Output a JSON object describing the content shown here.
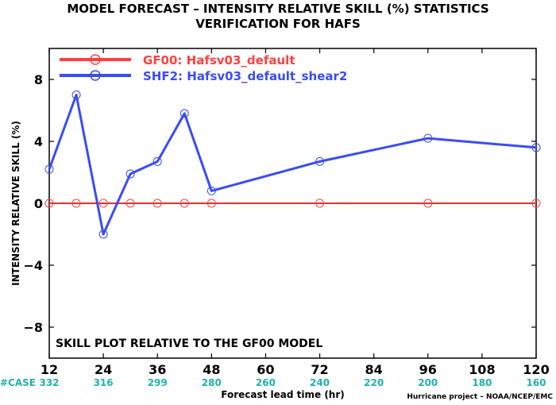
{
  "chart_data": {
    "type": "line",
    "title_line1": "MODEL FORECAST – INTENSITY RELATIVE SKILL (%) STATISTICS",
    "title_line2": "VERIFICATION FOR HAFS",
    "xlabel": "Forecast lead time (hr)",
    "ylabel": "INTENSITY RELATIVE SKILL (%)",
    "xlim": [
      12,
      120
    ],
    "ylim": [
      -10,
      10
    ],
    "x_ticks": [
      12,
      24,
      36,
      48,
      60,
      72,
      84,
      96,
      108,
      120
    ],
    "y_ticks": [
      8,
      4,
      0,
      -4,
      -8
    ],
    "y_tick_labels": [
      "8",
      "4",
      "0",
      "−4",
      "−8"
    ],
    "grid": false,
    "legend_position": "top-left",
    "cases_label": "#CASE",
    "cases": [
      {
        "x": 12,
        "count": "332"
      },
      {
        "x": 24,
        "count": "316"
      },
      {
        "x": 36,
        "count": "299"
      },
      {
        "x": 48,
        "count": "280"
      },
      {
        "x": 60,
        "count": "260"
      },
      {
        "x": 72,
        "count": "240"
      },
      {
        "x": 84,
        "count": "220"
      },
      {
        "x": 96,
        "count": "200"
      },
      {
        "x": 108,
        "count": "180"
      },
      {
        "x": 120,
        "count": "160"
      }
    ],
    "annotation": "SKILL PLOT RELATIVE TO THE GF00 MODEL",
    "credit": "Hurricane project – NOAA/NCEP/EMC",
    "zero_line_color": "#8b0000",
    "cases_color": "#20b2aa",
    "series": [
      {
        "name": "GF00: Hafsv03_default",
        "color": "#ff4040",
        "x": [
          12,
          18,
          24,
          30,
          36,
          42,
          48,
          72,
          96,
          120
        ],
        "y": [
          0,
          0,
          0,
          0,
          0,
          0,
          0,
          0,
          0,
          0
        ]
      },
      {
        "name": "SHF2: Hafsv03_default_shear2",
        "color": "#3a4cf5",
        "x": [
          12,
          18,
          24,
          30,
          36,
          42,
          48,
          72,
          96,
          120
        ],
        "y": [
          2.2,
          7.0,
          -2.0,
          1.9,
          2.7,
          5.8,
          0.8,
          2.7,
          4.2,
          3.6
        ]
      }
    ]
  }
}
